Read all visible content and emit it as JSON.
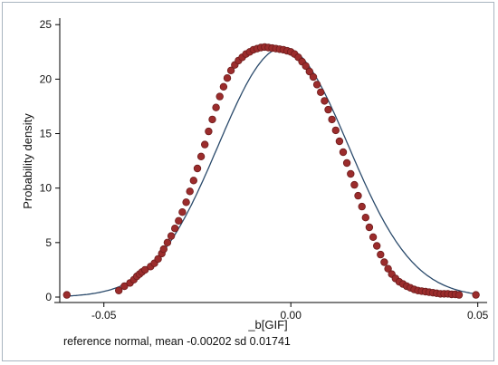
{
  "chart_data": {
    "type": "scatter",
    "xlabel": "_b[GIF]",
    "ylabel": "Probability density",
    "note": "reference normal, mean -0.00202 sd 0.01741",
    "xlim": [
      -0.0618,
      0.0525
    ],
    "ylim": [
      0,
      25.6
    ],
    "xticks": [
      -0.05,
      0,
      0.05
    ],
    "xtick_labels": [
      "-0.05",
      "0.00",
      "0.05"
    ],
    "yticks": [
      0,
      5,
      10,
      15,
      20,
      25
    ],
    "ytick_labels": [
      "0",
      "5",
      "10",
      "15",
      "20",
      "25"
    ],
    "grid": false,
    "legend": "none",
    "colors": {
      "points": "#9b2c2c",
      "point_edge": "#6e1c1c",
      "line": "#2a4a6b",
      "axis": "#000000"
    },
    "series": [
      {
        "kind": "line",
        "distribution": "normal",
        "mean": -0.00202,
        "sd": 0.01741,
        "x_range": [
          -0.06,
          0.05
        ]
      },
      {
        "kind": "points",
        "x": [
          -0.0599,
          -0.046,
          -0.0445,
          -0.043,
          -0.042,
          -0.0412,
          -0.0405,
          -0.0398,
          -0.039,
          -0.0375,
          -0.0365,
          -0.0355,
          -0.0345,
          -0.034,
          -0.033,
          -0.032,
          -0.031,
          -0.03,
          -0.029,
          -0.028,
          -0.027,
          -0.026,
          -0.025,
          -0.024,
          -0.023,
          -0.022,
          -0.021,
          -0.02,
          -0.019,
          -0.018,
          -0.017,
          -0.016,
          -0.015,
          -0.014,
          -0.013,
          -0.012,
          -0.011,
          -0.01,
          -0.009,
          -0.008,
          -0.007,
          -0.006,
          -0.005,
          -0.004,
          -0.003,
          -0.002,
          -0.001,
          0.0,
          0.001,
          0.002,
          0.003,
          0.004,
          0.005,
          0.006,
          0.007,
          0.008,
          0.009,
          0.01,
          0.011,
          0.012,
          0.013,
          0.014,
          0.015,
          0.016,
          0.017,
          0.018,
          0.019,
          0.02,
          0.021,
          0.022,
          0.023,
          0.024,
          0.025,
          0.026,
          0.027,
          0.028,
          0.029,
          0.03,
          0.031,
          0.032,
          0.033,
          0.034,
          0.035,
          0.036,
          0.037,
          0.038,
          0.039,
          0.04,
          0.041,
          0.042,
          0.043,
          0.044,
          0.045,
          0.0495
        ],
        "y": [
          0.2,
          0.6,
          1.0,
          1.3,
          1.6,
          1.9,
          2.1,
          2.3,
          2.5,
          2.8,
          3.1,
          3.5,
          4.0,
          4.4,
          5.0,
          5.6,
          6.3,
          7.0,
          7.8,
          8.7,
          9.7,
          10.7,
          11.8,
          12.9,
          14.0,
          15.2,
          16.3,
          17.4,
          18.4,
          19.3,
          20.1,
          20.8,
          21.3,
          21.7,
          22.0,
          22.3,
          22.5,
          22.7,
          22.8,
          22.9,
          22.95,
          22.9,
          22.85,
          22.8,
          22.75,
          22.7,
          22.6,
          22.5,
          22.3,
          22.0,
          21.6,
          21.2,
          20.7,
          20.2,
          19.5,
          18.8,
          18.0,
          17.2,
          16.3,
          15.3,
          14.3,
          13.3,
          12.3,
          11.3,
          10.3,
          9.3,
          8.3,
          7.3,
          6.4,
          5.5,
          4.7,
          3.9,
          3.2,
          2.6,
          2.1,
          1.7,
          1.4,
          1.2,
          1.0,
          0.85,
          0.7,
          0.6,
          0.55,
          0.5,
          0.45,
          0.4,
          0.35,
          0.3,
          0.3,
          0.3,
          0.25,
          0.25,
          0.2,
          0.2
        ]
      }
    ]
  }
}
